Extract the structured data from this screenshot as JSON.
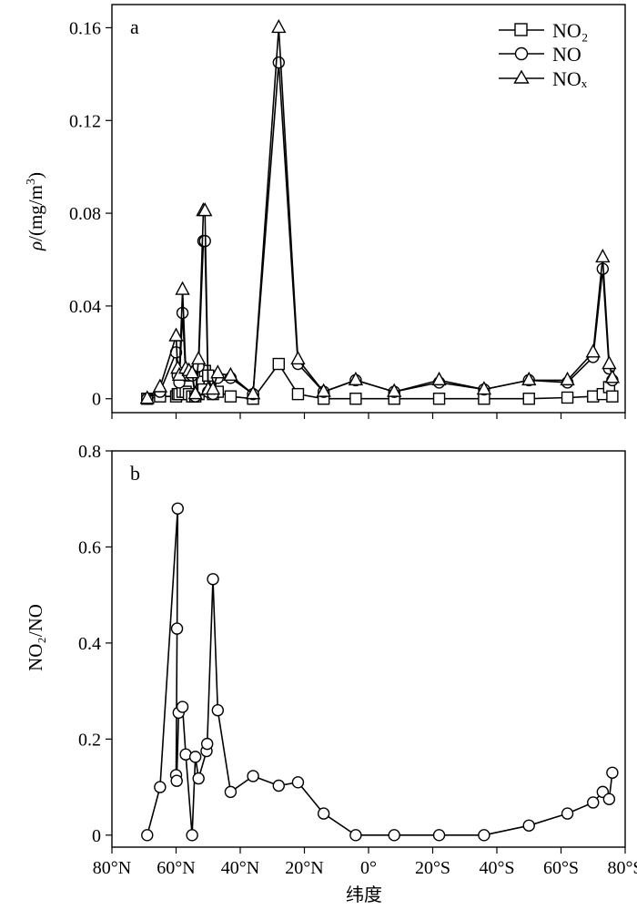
{
  "chart_data": [
    {
      "panel": "a",
      "type": "line",
      "xlabel": "纬度",
      "x_ticks": [
        "80°N",
        "60°N",
        "40°N",
        "20°N",
        "0°",
        "20°S",
        "40°S",
        "60°S",
        "80°S"
      ],
      "xlim": [
        80,
        -80
      ],
      "x_note": "latitude in degrees; positive = N, negative = S",
      "ylabel": "ρ/(mg/m³)",
      "ylim": [
        -0.006,
        0.17
      ],
      "y_ticks": [
        "0",
        "0.04",
        "0.08",
        "0.12",
        "0.16"
      ],
      "y_tick_values": [
        0,
        0.04,
        0.08,
        0.12,
        0.16
      ],
      "legend_position": "top-right",
      "series": [
        {
          "name": "NO₂",
          "marker": "square",
          "x": [
            69,
            65,
            60,
            59.5,
            59,
            58,
            57,
            56,
            55,
            54,
            53,
            51.5,
            51,
            50,
            48.5,
            47,
            43,
            36,
            28,
            22,
            14,
            4,
            -8,
            -22,
            -36,
            -50,
            -62,
            -70,
            -73,
            -75,
            -76
          ],
          "y": [
            0,
            0.001,
            0.001,
            0.002,
            0.002,
            0.003,
            0.003,
            0.002,
            0.001,
            0.001,
            0.002,
            0.004,
            0.012,
            0.01,
            0.002,
            0.003,
            0.001,
            0,
            0.015,
            0.002,
            0,
            0,
            0,
            0,
            0,
            0,
            0.0005,
            0.001,
            0.002,
            0.005,
            0.001
          ]
        },
        {
          "name": "NO",
          "marker": "circle",
          "x": [
            69,
            65,
            60,
            59.5,
            59,
            58,
            57,
            56,
            55,
            54,
            53,
            51.5,
            51,
            50,
            48.5,
            47,
            43,
            36,
            28,
            22,
            14,
            4,
            -8,
            -22,
            -36,
            -50,
            -62,
            -70,
            -73,
            -75,
            -76
          ],
          "y": [
            0,
            0.003,
            0.02,
            0.01,
            0.007,
            0.037,
            0.01,
            0.01,
            0.01,
            0.001,
            0.014,
            0.068,
            0.068,
            0.003,
            0.002,
            0.009,
            0.009,
            0.002,
            0.145,
            0.015,
            0.003,
            0.008,
            0.003,
            0.007,
            0.004,
            0.008,
            0.007,
            0.018,
            0.056,
            0.013,
            0.008
          ]
        },
        {
          "name": "NOₓ",
          "marker": "triangle",
          "x": [
            69,
            65,
            60,
            59.5,
            59,
            58,
            57,
            56,
            55,
            54,
            53,
            51.5,
            51,
            50,
            48.5,
            47,
            43,
            36,
            28,
            22,
            14,
            4,
            -8,
            -22,
            -36,
            -50,
            -62,
            -70,
            -73,
            -75,
            -76
          ],
          "y": [
            0,
            0.005,
            0.027,
            0.013,
            0.01,
            0.047,
            0.013,
            0.012,
            0.011,
            0.002,
            0.017,
            0.081,
            0.081,
            0.004,
            0.004,
            0.011,
            0.01,
            0.002,
            0.16,
            0.017,
            0.003,
            0.008,
            0.003,
            0.008,
            0.004,
            0.008,
            0.008,
            0.02,
            0.061,
            0.015,
            0.009
          ]
        }
      ]
    },
    {
      "panel": "b",
      "type": "line",
      "xlabel": "纬度",
      "x_ticks": [
        "80°N",
        "60°N",
        "40°N",
        "20°N",
        "0°",
        "20°S",
        "40°S",
        "60°S",
        "80°S"
      ],
      "xlim": [
        80,
        -80
      ],
      "ylabel": "NO₂/NO",
      "ylim": [
        -0.025,
        0.8
      ],
      "y_ticks": [
        "0",
        "0.2",
        "0.4",
        "0.6",
        "0.8"
      ],
      "y_tick_values": [
        0,
        0.2,
        0.4,
        0.6,
        0.8
      ],
      "series": [
        {
          "name": "NO₂/NO",
          "marker": "circle",
          "x": [
            69,
            65,
            59.5,
            59.7,
            60,
            59.8,
            59.2,
            58,
            57,
            55,
            54,
            53,
            50.5,
            50.3,
            48.5,
            47,
            43,
            36,
            28,
            22,
            14,
            4,
            -8,
            -22,
            -36,
            -50,
            -62,
            -70,
            -73,
            -75,
            -76
          ],
          "y": [
            0,
            0.1,
            0.68,
            0.43,
            0.125,
            0.113,
            0.255,
            0.267,
            0.168,
            0,
            0.163,
            0.118,
            0.175,
            0.19,
            0.533,
            0.26,
            0.09,
            0.123,
            0.103,
            0.11,
            0.045,
            0,
            0,
            0,
            0,
            0.02,
            0.045,
            0.068,
            0.09,
            0.075,
            0.13
          ]
        }
      ]
    }
  ]
}
